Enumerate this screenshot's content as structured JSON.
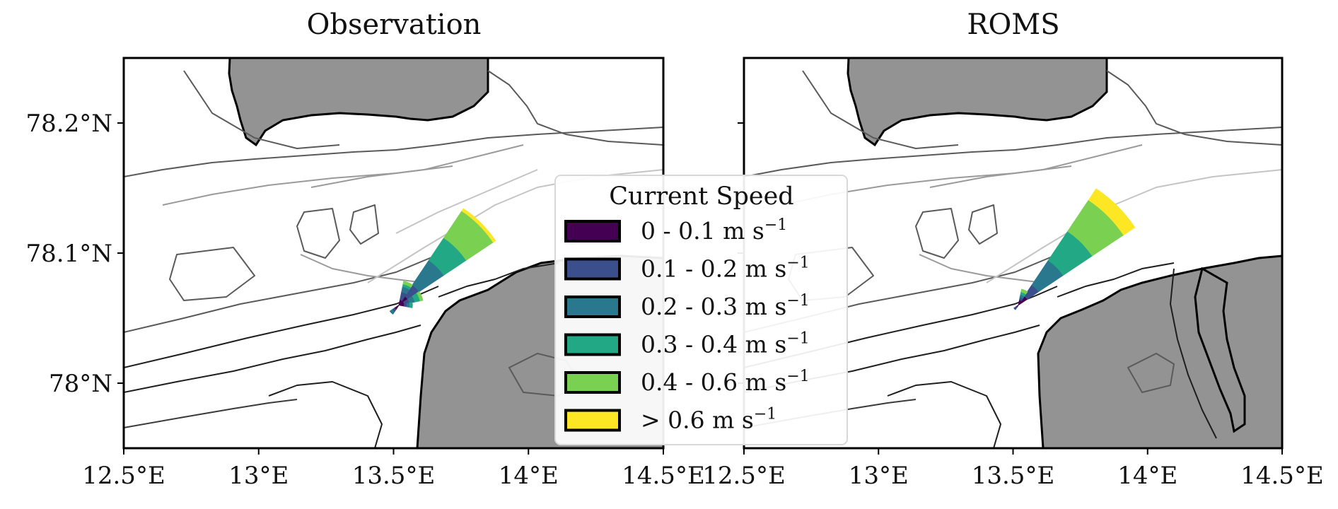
{
  "panels": [
    {
      "id": "obs",
      "title": "Observation"
    },
    {
      "id": "roms",
      "title": "ROMS"
    }
  ],
  "colors": {
    "land": "#939393",
    "water": "#ffffff",
    "frame": "#000000",
    "contour_dark": "#1e1e1e",
    "contour_mid": "#5a5a5a",
    "contour_light": "#9a9a9a",
    "contour_faint": "#c4c4c4",
    "speed_bins": [
      "#440154",
      "#3b4f8c",
      "#2a788e",
      "#22a884",
      "#7ad151",
      "#fde725"
    ]
  },
  "legend": {
    "title": "Current Speed",
    "entries": [
      {
        "label": "0 - 0.1 m s",
        "exp": "−1"
      },
      {
        "label": "0.1 - 0.2 m s",
        "exp": "−1"
      },
      {
        "label": "0.2 - 0.3 m s",
        "exp": "−1"
      },
      {
        "label": "0.3 - 0.4 m s",
        "exp": "−1"
      },
      {
        "label": "0.4 - 0.6 m s",
        "exp": "−1"
      },
      {
        "label": "> 0.6 m s",
        "exp": "−1"
      }
    ]
  },
  "chart_data": {
    "type": "windrose-on-map",
    "x_ticks": [
      {
        "value": 12.5,
        "label": "12.5°E"
      },
      {
        "value": 13.0,
        "label": "13°E"
      },
      {
        "value": 13.5,
        "label": "13.5°E"
      },
      {
        "value": 14.0,
        "label": "14°E"
      },
      {
        "value": 14.5,
        "label": "14.5°E"
      }
    ],
    "y_ticks": [
      {
        "value": 78.2,
        "label": "78.2°N"
      },
      {
        "value": 78.1,
        "label": "78.1°N"
      },
      {
        "value": 78.0,
        "label": "78°N"
      }
    ],
    "xlim": [
      12.5,
      14.5
    ],
    "ylim": [
      77.95,
      78.25
    ],
    "rose_center": {
      "lon": 13.52,
      "lat": 78.06
    },
    "speed_bins": [
      "0 - 0.1",
      "0.1 - 0.2",
      "0.2 - 0.3",
      "0.3 - 0.4",
      "0.4 - 0.6",
      "> 0.6"
    ],
    "roses": [
      {
        "panel": "Observation",
        "sectors": [
          {
            "direction_deg": 45,
            "cumulative_extent_deg_lon": [
              0.04,
              0.09,
              0.2,
              0.3,
              0.42,
              0.43
            ]
          },
          {
            "direction_deg": 22.5,
            "cumulative_extent_deg_lon": [
              0.02,
              0.05,
              0.07,
              0.08,
              0.09,
              0.09
            ]
          },
          {
            "direction_deg": 67.5,
            "cumulative_extent_deg_lon": [
              0.02,
              0.04,
              0.06,
              0.08,
              0.09,
              0.09
            ]
          },
          {
            "direction_deg": 225,
            "cumulative_extent_deg_lon": [
              0.02,
              0.03,
              0.04,
              0.04,
              0.04,
              0.04
            ]
          },
          {
            "direction_deg": 90,
            "cumulative_extent_deg_lon": [
              0.02,
              0.03,
              0.04,
              0.05,
              0.05,
              0.05
            ]
          }
        ]
      },
      {
        "panel": "ROMS",
        "sectors": [
          {
            "direction_deg": 45,
            "cumulative_extent_deg_lon": [
              0.04,
              0.09,
              0.2,
              0.33,
              0.47,
              0.52
            ]
          },
          {
            "direction_deg": 22.5,
            "cumulative_extent_deg_lon": [
              0.02,
              0.03,
              0.04,
              0.05,
              0.06,
              0.06
            ]
          },
          {
            "direction_deg": 225,
            "cumulative_extent_deg_lon": [
              0.01,
              0.02,
              0.02,
              0.02,
              0.02,
              0.02
            ]
          }
        ]
      }
    ]
  }
}
